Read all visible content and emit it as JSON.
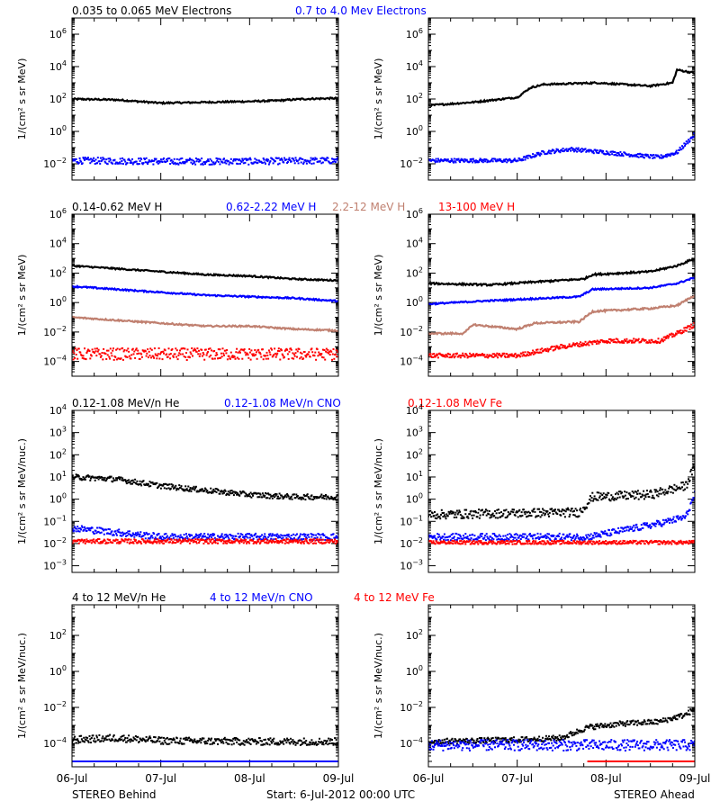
{
  "footer": {
    "left": "STEREO Behind",
    "center": "Start:  6-Jul-2012 00:00 UTC",
    "right": "STEREO Ahead"
  },
  "x_ticks": [
    "06-Jul",
    "07-Jul",
    "08-Jul",
    "09-Jul"
  ],
  "colors": {
    "black": "#000000",
    "blue": "#0000ff",
    "brown": "#c08070",
    "red": "#ff0000",
    "axis": "#000000"
  },
  "chart_data": [
    {
      "type": "scatter",
      "log_y": true,
      "ylim_exp": [
        -3,
        7
      ],
      "x_range_days": [
        0,
        3
      ],
      "ylabel": "1/(cm² s sr MeV)",
      "ytick_exps": [
        -2,
        0,
        2,
        4,
        6
      ],
      "legend": [
        {
          "text": "0.035 to 0.065 MeV Electrons",
          "color": "black"
        },
        {
          "text": "0.7 to 4.0 Mev Electrons",
          "color": "blue"
        }
      ],
      "behind": {
        "series": [
          {
            "name": "0.035 to 0.065 MeV Electrons",
            "color": "black",
            "style": "line",
            "x": [
              0,
              0.5,
              1.0,
              1.5,
              2.0,
              2.3,
              2.6,
              3.0
            ],
            "logy": [
              2.0,
              1.95,
              1.75,
              1.8,
              1.85,
              1.9,
              2.0,
              2.05
            ],
            "noise": 0.05
          },
          {
            "name": "0.7 to 4.0 Mev Electrons",
            "color": "blue",
            "style": "scatter",
            "x": [
              0,
              1,
              2,
              3
            ],
            "logy": [
              -1.8,
              -1.85,
              -1.85,
              -1.8
            ],
            "noise": 0.2
          }
        ]
      },
      "ahead": {
        "series": [
          {
            "name": "0.035 to 0.065 MeV Electrons",
            "color": "black",
            "style": "line",
            "x": [
              0,
              0.5,
              1.0,
              1.15,
              1.3,
              1.9,
              2.5,
              2.75,
              2.8,
              3.0
            ],
            "logy": [
              1.6,
              1.8,
              2.1,
              2.7,
              2.9,
              3.0,
              2.8,
              3.0,
              3.8,
              3.6
            ],
            "noise": 0.05
          },
          {
            "name": "0.7 to 4.0 Mev Electrons",
            "color": "blue",
            "style": "scatter",
            "x": [
              0,
              1.0,
              1.3,
              1.6,
              2.0,
              2.6,
              2.8,
              3.0
            ],
            "logy": [
              -1.8,
              -1.8,
              -1.3,
              -1.1,
              -1.3,
              -1.6,
              -1.3,
              -0.2
            ],
            "noise": 0.12
          }
        ]
      }
    },
    {
      "type": "scatter",
      "log_y": true,
      "ylim_exp": [
        -5,
        6
      ],
      "x_range_days": [
        0,
        3
      ],
      "ylabel": "1/(cm² s sr MeV)",
      "ytick_exps": [
        -4,
        -2,
        0,
        2,
        4,
        6
      ],
      "legend": [
        {
          "text": "0.14-0.62 MeV H",
          "color": "black"
        },
        {
          "text": "0.62-2.22 MeV H",
          "color": "blue"
        },
        {
          "text": "2.2-12 MeV H",
          "color": "brown"
        },
        {
          "text": "13-100 MeV H",
          "color": "red"
        }
      ],
      "behind": {
        "series": [
          {
            "name": "0.14-0.62 MeV H",
            "color": "black",
            "style": "line",
            "x": [
              0,
              0.5,
              1.0,
              1.5,
              2.0,
              2.5,
              3.0
            ],
            "logy": [
              2.5,
              2.3,
              2.1,
              1.9,
              1.8,
              1.6,
              1.5
            ],
            "noise": 0.05
          },
          {
            "name": "0.62-2.22 MeV H",
            "color": "blue",
            "style": "line",
            "x": [
              0,
              0.5,
              1.0,
              1.5,
              2.0,
              2.5,
              3.0
            ],
            "logy": [
              1.1,
              0.9,
              0.7,
              0.5,
              0.4,
              0.3,
              0.1
            ],
            "noise": 0.05
          },
          {
            "name": "2.2-12 MeV H",
            "color": "brown",
            "style": "line",
            "x": [
              0,
              0.5,
              1.0,
              1.5,
              2.0,
              2.5,
              3.0
            ],
            "logy": [
              -1.0,
              -1.2,
              -1.4,
              -1.6,
              -1.6,
              -1.8,
              -1.9
            ],
            "noise": 0.05
          },
          {
            "name": "13-100 MeV H",
            "color": "red",
            "style": "scatter",
            "x": [
              0,
              1,
              2,
              3
            ],
            "logy": [
              -3.5,
              -3.5,
              -3.5,
              -3.5
            ],
            "noise": 0.4
          }
        ]
      },
      "ahead": {
        "series": [
          {
            "name": "0.14-0.62 MeV H",
            "color": "black",
            "style": "line",
            "x": [
              0,
              0.7,
              1.2,
              1.75,
              1.85,
              2.5,
              2.8,
              3.0
            ],
            "logy": [
              1.3,
              1.2,
              1.4,
              1.6,
              1.9,
              2.1,
              2.5,
              3.0
            ],
            "noise": 0.06
          },
          {
            "name": "0.62-2.22 MeV H",
            "color": "blue",
            "style": "line",
            "x": [
              0,
              0.6,
              1.7,
              1.85,
              2.5,
              2.8,
              3.0
            ],
            "logy": [
              -0.1,
              0.1,
              0.4,
              0.9,
              1.0,
              1.3,
              1.7
            ],
            "noise": 0.05
          },
          {
            "name": "2.2-12 MeV H",
            "color": "brown",
            "style": "line",
            "x": [
              0,
              0.4,
              0.5,
              1.0,
              1.2,
              1.7,
              1.85,
              2.5,
              2.8,
              3.0
            ],
            "logy": [
              -2.1,
              -2.1,
              -1.5,
              -1.8,
              -1.4,
              -1.3,
              -0.6,
              -0.4,
              -0.2,
              0.5
            ],
            "noise": 0.06
          },
          {
            "name": "13-100 MeV H",
            "color": "red",
            "style": "scatter",
            "x": [
              0,
              1.0,
              1.5,
              2.0,
              2.6,
              2.8,
              3.0
            ],
            "logy": [
              -3.6,
              -3.6,
              -3.0,
              -2.6,
              -2.6,
              -2.1,
              -1.5
            ],
            "noise": 0.15
          }
        ]
      }
    },
    {
      "type": "scatter",
      "log_y": true,
      "ylim_exp": [
        -3.3,
        4
      ],
      "x_range_days": [
        0,
        3
      ],
      "ylabel": "1/(cm² s sr MeV/nuc.)",
      "ytick_exps": [
        -3,
        -2,
        -1,
        0,
        1,
        2,
        3,
        4
      ],
      "legend": [
        {
          "text": "0.12-1.08 MeV/n He",
          "color": "black"
        },
        {
          "text": "0.12-1.08 MeV/n CNO",
          "color": "blue"
        },
        {
          "text": "0.12-1.08 MeV Fe",
          "color": "red"
        }
      ],
      "behind": {
        "series": [
          {
            "name": "0.12-1.08 MeV/n He",
            "color": "black",
            "style": "scatter",
            "x": [
              0,
              0.5,
              1.0,
              1.5,
              2.0,
              2.5,
              3.0
            ],
            "logy": [
              1.0,
              0.9,
              0.6,
              0.4,
              0.2,
              0.1,
              0.1
            ],
            "noise": 0.12
          },
          {
            "name": "0.12-1.08 MeV/n CNO",
            "color": "blue",
            "style": "scatter",
            "x": [
              0,
              0.5,
              1.0,
              2.0,
              3.0
            ],
            "logy": [
              -1.3,
              -1.5,
              -1.7,
              -1.7,
              -1.7
            ],
            "noise": 0.15
          },
          {
            "name": "0.12-1.08 MeV Fe",
            "color": "red",
            "style": "scatter",
            "x": [
              0,
              3.0
            ],
            "logy": [
              -1.9,
              -1.9
            ],
            "noise": 0.1
          }
        ]
      },
      "ahead": {
        "series": [
          {
            "name": "0.12-1.08 MeV/n He",
            "color": "black",
            "style": "scatter",
            "x": [
              0,
              1.5,
              1.7,
              1.85,
              2.5,
              2.9,
              3.0
            ],
            "logy": [
              -0.7,
              -0.6,
              -0.6,
              0.1,
              0.2,
              0.6,
              1.5
            ],
            "noise": 0.2
          },
          {
            "name": "0.12-1.08 MeV/n CNO",
            "color": "blue",
            "style": "scatter",
            "x": [
              0,
              1.8,
              2.2,
              2.6,
              2.9,
              3.0
            ],
            "logy": [
              -1.7,
              -1.7,
              -1.4,
              -1.1,
              -0.8,
              0.2
            ],
            "noise": 0.15
          },
          {
            "name": "0.12-1.08 MeV Fe",
            "color": "red",
            "style": "scatter",
            "x": [
              0,
              3.0
            ],
            "logy": [
              -1.95,
              -1.95
            ],
            "noise": 0.08
          }
        ]
      }
    },
    {
      "type": "scatter",
      "log_y": true,
      "ylim_exp": [
        -5.3,
        3.7
      ],
      "x_range_days": [
        0,
        3
      ],
      "ylabel": "1/(cm² s sr MeV/nuc.)",
      "ytick_exps": [
        -4,
        -2,
        0,
        2
      ],
      "legend": [
        {
          "text": "4 to 12 MeV/n He",
          "color": "black"
        },
        {
          "text": "4 to 12 MeV/n CNO",
          "color": "blue"
        },
        {
          "text": "4 to 12 MeV Fe",
          "color": "red"
        }
      ],
      "behind": {
        "series": [
          {
            "name": "4 to 12 MeV/n He",
            "color": "black",
            "style": "scatter",
            "x": [
              0,
              0.5,
              1.0,
              2.0,
              3.0
            ],
            "logy": [
              -3.8,
              -3.7,
              -3.85,
              -3.9,
              -3.9
            ],
            "noise": 0.2
          },
          {
            "name": "4 to 12 MeV/n CNO",
            "color": "blue",
            "style": "scatter",
            "x": [
              0,
              3.0
            ],
            "logy": [
              -5.0,
              -5.0
            ],
            "noise": 0.0
          }
        ]
      },
      "ahead": {
        "series": [
          {
            "name": "4 to 12 MeV/n He",
            "color": "black",
            "style": "scatter",
            "x": [
              0,
              1.0,
              1.5,
              1.8,
              2.2,
              2.6,
              2.9,
              3.0
            ],
            "logy": [
              -3.9,
              -3.8,
              -3.7,
              -3.1,
              -2.9,
              -2.8,
              -2.4,
              -2.1
            ],
            "noise": 0.15
          },
          {
            "name": "4 to 12 MeV/n CNO",
            "color": "blue",
            "style": "scatter",
            "x": [
              0,
              3.0
            ],
            "logy": [
              -4.1,
              -4.1
            ],
            "noise": 0.3
          },
          {
            "name": "4 to 12 MeV Fe",
            "color": "red",
            "style": "scatter",
            "x": [
              1.8,
              3.0
            ],
            "logy": [
              -5.0,
              -5.0
            ],
            "noise": 0.0
          }
        ]
      }
    }
  ]
}
